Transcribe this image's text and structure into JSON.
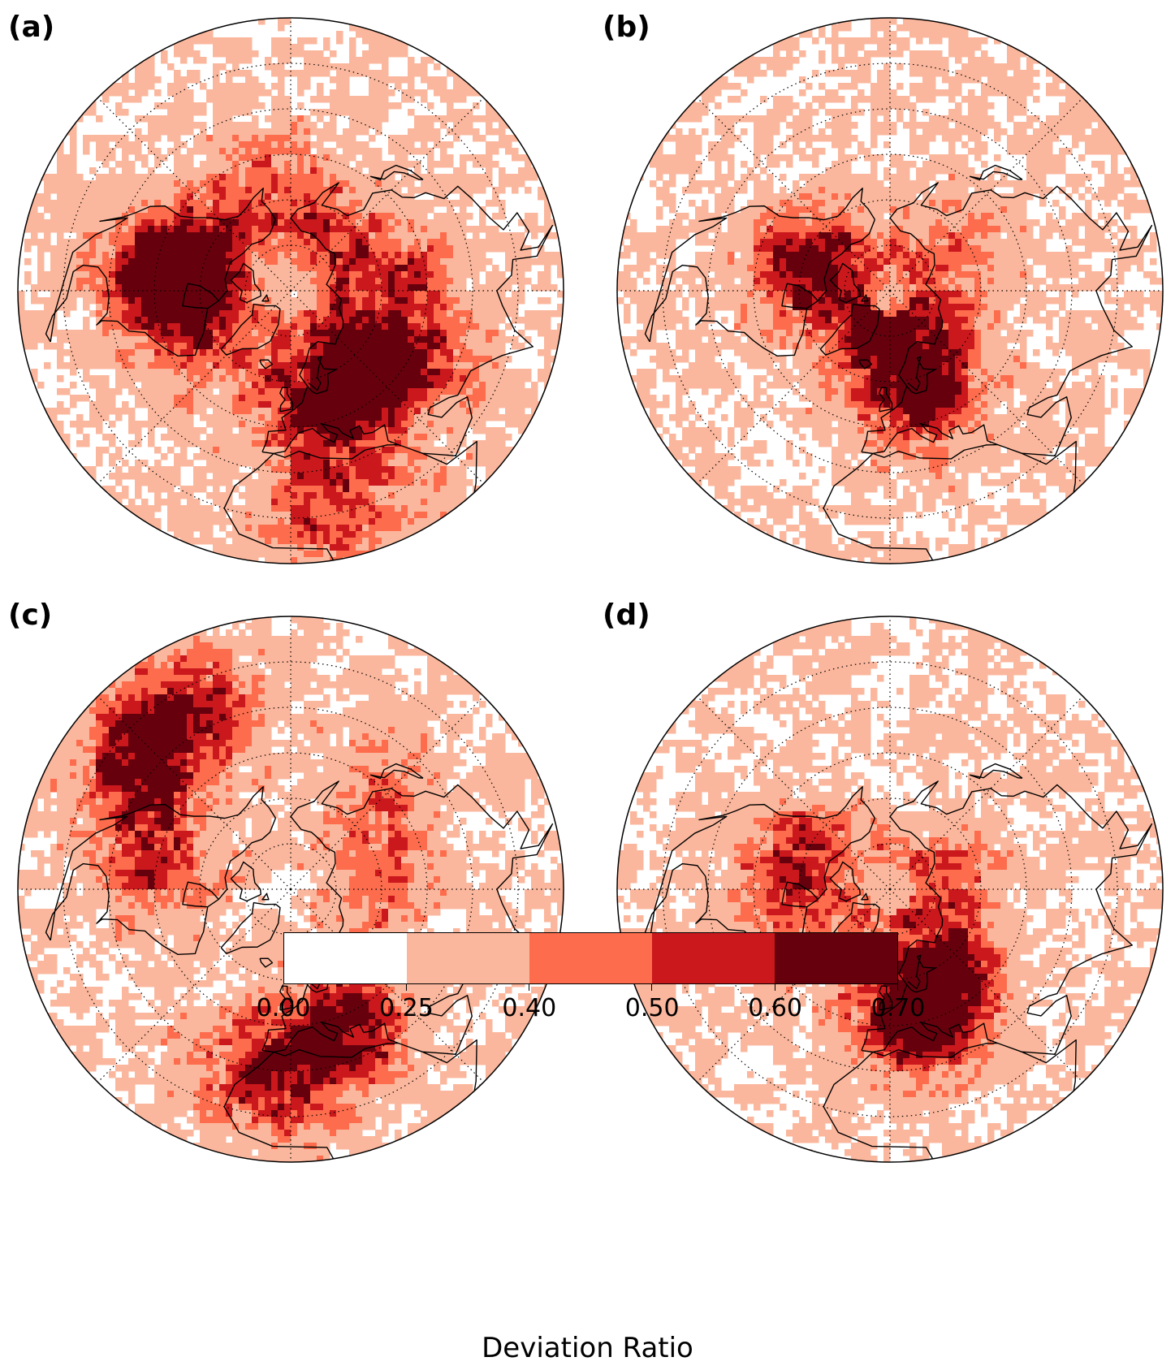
{
  "panels": [
    {
      "id": "a",
      "label": "(a)",
      "hotspots": [
        {
          "lon": -100,
          "lat": 45,
          "level": 4
        },
        {
          "lon": -95,
          "lat": 55,
          "level": 3
        },
        {
          "lon": 15,
          "lat": 48,
          "level": 4
        },
        {
          "lon": 40,
          "lat": 60,
          "level": 3
        },
        {
          "lon": 100,
          "lat": 55,
          "level": 3
        },
        {
          "lon": 160,
          "lat": 60,
          "level": 2
        },
        {
          "lon": -160,
          "lat": 55,
          "level": 2
        },
        {
          "lon": 10,
          "lat": 15,
          "level": 3
        },
        {
          "lon": -60,
          "lat": 55,
          "level": 2
        },
        {
          "lon": 60,
          "lat": 40,
          "level": 3
        }
      ]
    },
    {
      "id": "b",
      "label": "(b)",
      "hotspots": [
        {
          "lon": 10,
          "lat": 52,
          "level": 3
        },
        {
          "lon": 30,
          "lat": 62,
          "level": 3
        },
        {
          "lon": -100,
          "lat": 60,
          "level": 3
        },
        {
          "lon": -120,
          "lat": 65,
          "level": 2
        },
        {
          "lon": 120,
          "lat": 65,
          "level": 2
        },
        {
          "lon": -20,
          "lat": 70,
          "level": 2
        }
      ]
    },
    {
      "id": "c",
      "label": "(c)",
      "hotspots": [
        {
          "lon": -130,
          "lat": 25,
          "level": 4
        },
        {
          "lon": -150,
          "lat": 20,
          "level": 3
        },
        {
          "lon": -100,
          "lat": 45,
          "level": 3
        },
        {
          "lon": 10,
          "lat": 35,
          "level": 3
        },
        {
          "lon": 30,
          "lat": 45,
          "level": 3
        },
        {
          "lon": 100,
          "lat": 60,
          "level": 2
        },
        {
          "lon": -10,
          "lat": 25,
          "level": 3
        },
        {
          "lon": 140,
          "lat": 45,
          "level": 2
        }
      ]
    },
    {
      "id": "d",
      "label": "(d)",
      "hotspots": [
        {
          "lon": 20,
          "lat": 52,
          "level": 4
        },
        {
          "lon": 10,
          "lat": 45,
          "level": 3
        },
        {
          "lon": -110,
          "lat": 60,
          "level": 3
        },
        {
          "lon": -80,
          "lat": 55,
          "level": 2
        },
        {
          "lon": 110,
          "lat": 70,
          "level": 2
        },
        {
          "lon": 45,
          "lat": 60,
          "level": 2
        }
      ]
    }
  ],
  "colorbar": {
    "title": "Deviation Ratio",
    "ticks": [
      "0.00",
      "0.25",
      "0.40",
      "0.50",
      "0.60",
      "0.70"
    ],
    "colors": [
      "#ffffff",
      "#fbb79d",
      "#fc6c4d",
      "#cb181d",
      "#67000d"
    ]
  }
}
